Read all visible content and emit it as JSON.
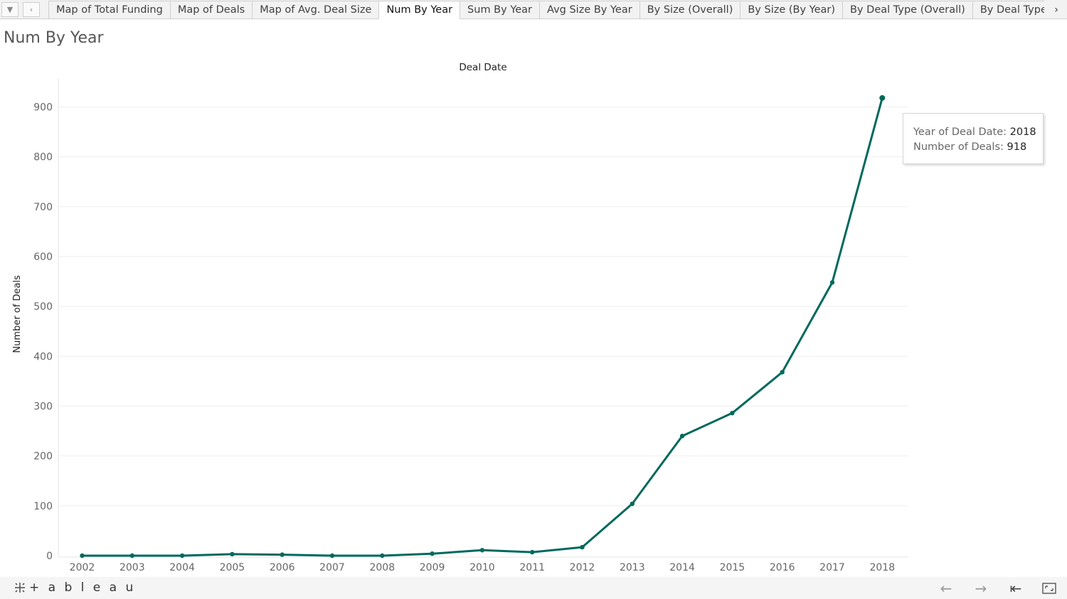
{
  "tabs": [
    {
      "label": "Map of Total Funding",
      "active": false
    },
    {
      "label": "Map of Deals",
      "active": false
    },
    {
      "label": "Map of Avg. Deal Size",
      "active": false
    },
    {
      "label": "Num By Year",
      "active": true
    },
    {
      "label": "Sum By Year",
      "active": false
    },
    {
      "label": "Avg Size By Year",
      "active": false
    },
    {
      "label": "By Size (Overall)",
      "active": false
    },
    {
      "label": "By Size (By Year)",
      "active": false
    },
    {
      "label": "By Deal Type (Overall)",
      "active": false
    },
    {
      "label": "By Deal Type (B",
      "active": false
    }
  ],
  "sheet": {
    "title": "Num By Year"
  },
  "chart_data": {
    "type": "line",
    "title": "Deal Date",
    "xlabel": "",
    "ylabel": "Number of Deals",
    "x": [
      "2002",
      "2003",
      "2004",
      "2005",
      "2006",
      "2007",
      "2008",
      "2009",
      "2010",
      "2011",
      "2012",
      "2013",
      "2014",
      "2015",
      "2016",
      "2017",
      "2018"
    ],
    "values": [
      0,
      0,
      0,
      3,
      2,
      0,
      0,
      4,
      11,
      7,
      17,
      104,
      240,
      286,
      368,
      548,
      918
    ],
    "ylim": [
      0,
      960
    ],
    "yticks": [
      0,
      100,
      200,
      300,
      400,
      500,
      600,
      700,
      800,
      900
    ],
    "grid": true,
    "color": "#00695c"
  },
  "tooltip": {
    "label1": "Year of Deal Date:",
    "value1": "2018",
    "label2": "Number of Deals:",
    "value2": "918"
  },
  "footer": {
    "brand": "+ a b l e a u"
  },
  "colors": {
    "line": "#00695c",
    "grid": "#eeeeee",
    "axis_text": "#666666"
  }
}
